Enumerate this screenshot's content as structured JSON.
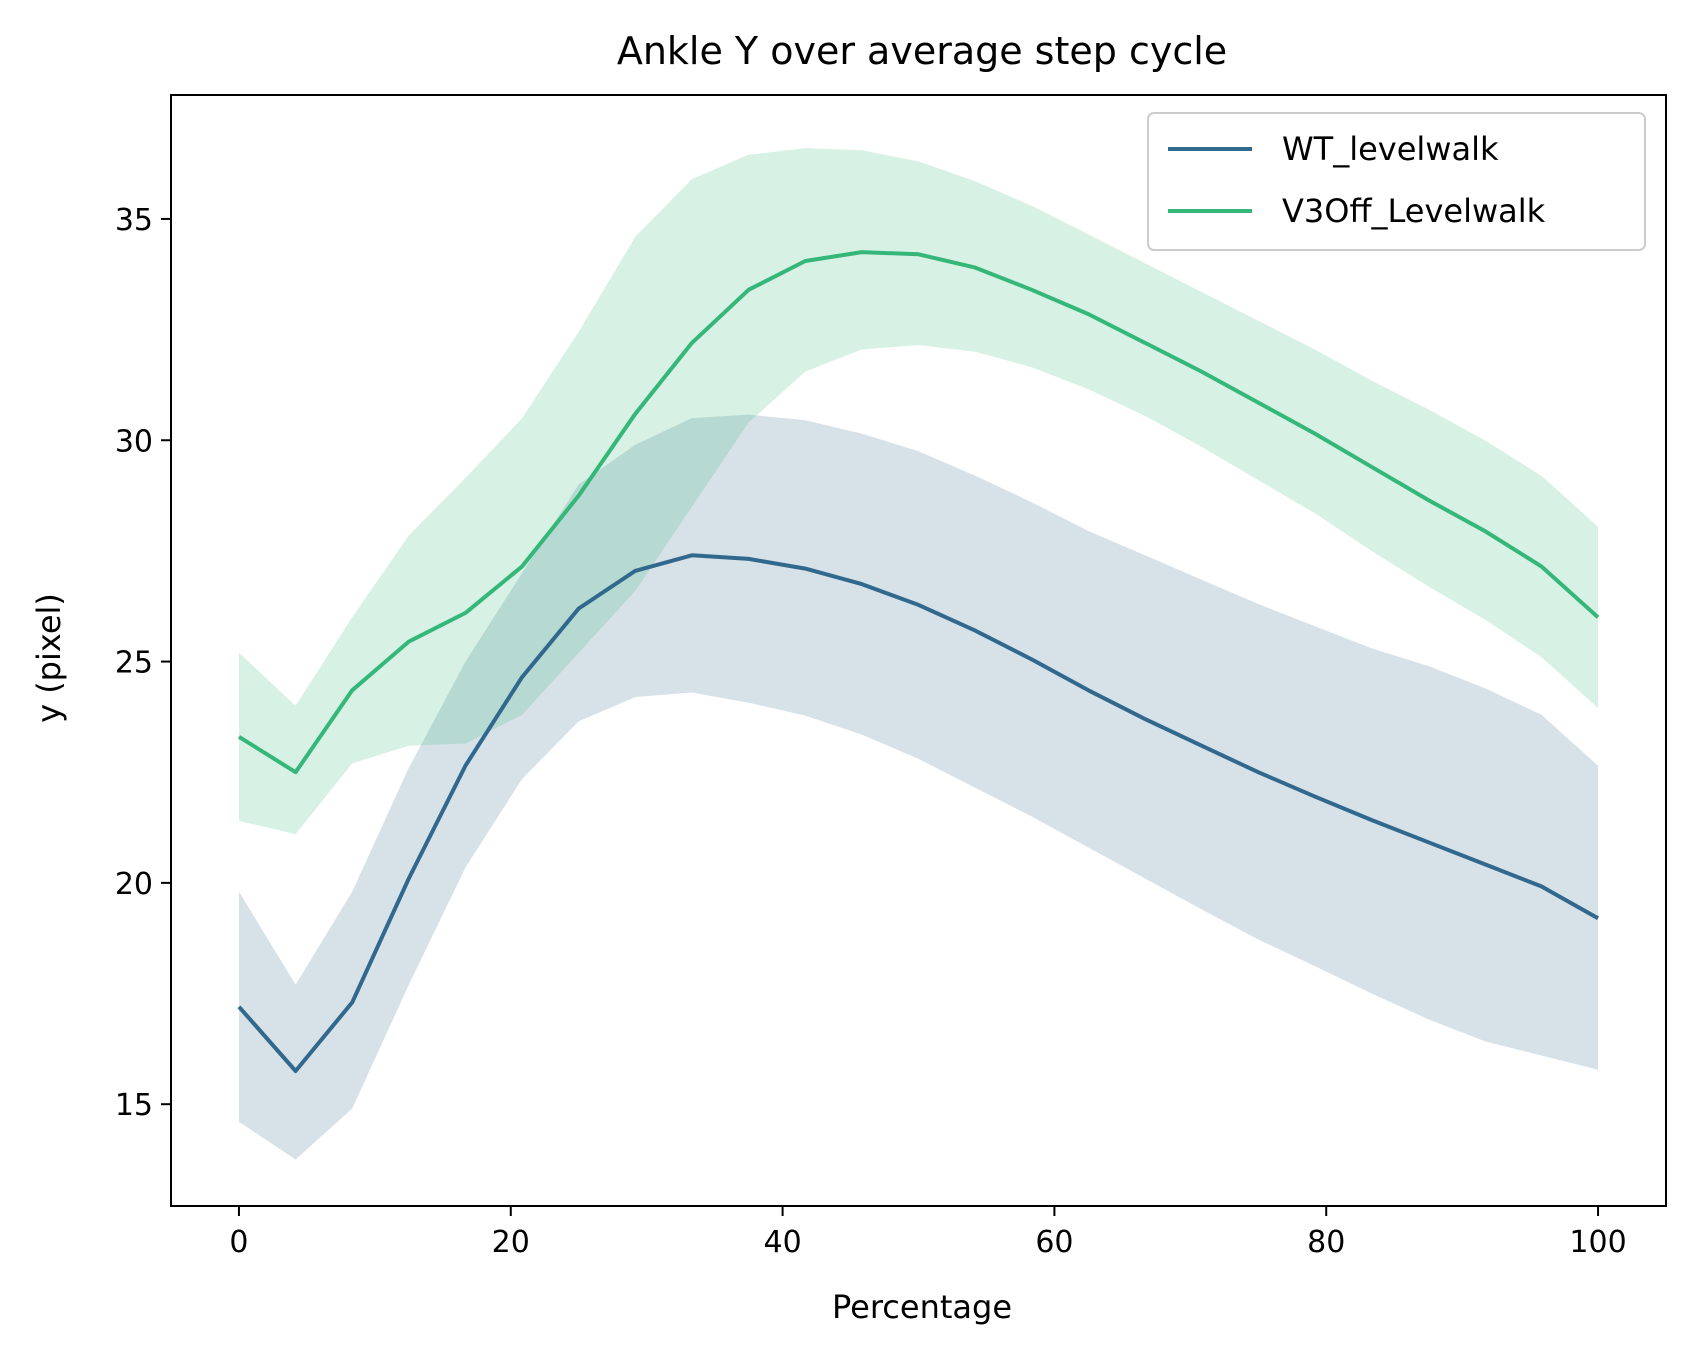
{
  "chart_data": {
    "type": "line",
    "title": "Ankle Y over average step cycle",
    "xlabel": "Percentage",
    "ylabel": "y (pixel)",
    "xlim": [
      -5,
      105
    ],
    "ylim": [
      12.7,
      37.8
    ],
    "xticks": [
      0,
      20,
      40,
      60,
      80,
      100
    ],
    "yticks": [
      15,
      20,
      25,
      30,
      35
    ],
    "grid": false,
    "legend_position": "top-right",
    "x": [
      0,
      4.17,
      8.33,
      12.5,
      16.67,
      20.83,
      25,
      29.17,
      33.33,
      37.5,
      41.67,
      45.83,
      50,
      54.17,
      58.33,
      62.5,
      66.67,
      70.83,
      75,
      79.17,
      83.33,
      87.5,
      91.67,
      95.83,
      100
    ],
    "series": [
      {
        "name": "WT_levelwalk",
        "color": "#31688e",
        "values": [
          17.2,
          15.75,
          17.3,
          20.1,
          22.65,
          24.65,
          26.2,
          27.05,
          27.4,
          27.32,
          27.1,
          26.75,
          26.28,
          25.7,
          25.05,
          24.35,
          23.7,
          23.1,
          22.5,
          21.95,
          21.42,
          20.92,
          20.42,
          19.92,
          19.2
        ],
        "upper": [
          19.8,
          17.7,
          19.8,
          22.6,
          25.0,
          27.0,
          29.0,
          29.9,
          30.5,
          30.58,
          30.45,
          30.15,
          29.75,
          29.2,
          28.6,
          27.95,
          27.4,
          26.85,
          26.3,
          25.8,
          25.3,
          24.9,
          24.4,
          23.8,
          22.65
        ],
        "lower": [
          14.6,
          13.75,
          14.9,
          17.7,
          20.35,
          22.35,
          23.65,
          24.2,
          24.3,
          24.07,
          23.78,
          23.35,
          22.8,
          22.15,
          21.5,
          20.8,
          20.1,
          19.4,
          18.72,
          18.12,
          17.5,
          16.92,
          16.42,
          16.1,
          15.78
        ]
      },
      {
        "name": "V3Off_Levelwalk",
        "color": "#35b779",
        "values": [
          23.3,
          22.5,
          24.35,
          25.45,
          26.1,
          27.15,
          28.75,
          30.6,
          32.2,
          33.4,
          34.05,
          34.25,
          34.2,
          33.9,
          33.4,
          32.85,
          32.2,
          31.55,
          30.85,
          30.15,
          29.4,
          28.65,
          27.95,
          27.15,
          26.0
        ],
        "upper": [
          25.2,
          24.0,
          26.0,
          27.85,
          29.15,
          30.5,
          32.45,
          34.6,
          35.9,
          36.45,
          36.6,
          36.55,
          36.3,
          35.85,
          35.3,
          34.65,
          34.0,
          33.35,
          32.7,
          32.05,
          31.35,
          30.7,
          30.0,
          29.2,
          28.05
        ],
        "lower": [
          21.4,
          21.1,
          22.7,
          23.1,
          23.15,
          23.8,
          25.2,
          26.6,
          28.5,
          30.4,
          31.55,
          32.05,
          32.15,
          32.0,
          31.65,
          31.15,
          30.55,
          29.85,
          29.1,
          28.35,
          27.5,
          26.7,
          25.95,
          25.1,
          23.95
        ]
      }
    ]
  }
}
